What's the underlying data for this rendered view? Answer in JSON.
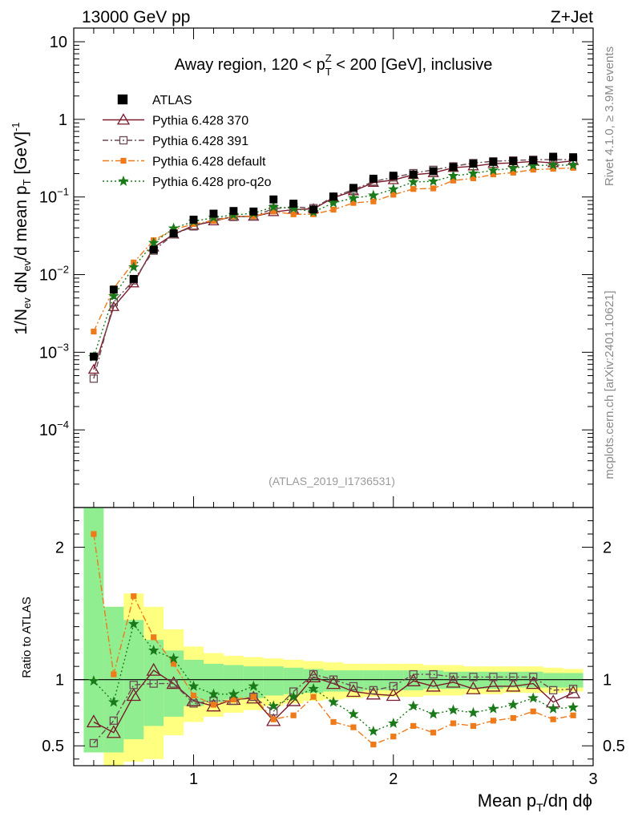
{
  "header": {
    "left": "13000 GeV pp",
    "right": "Z+Jet"
  },
  "side_labels": {
    "rivet": "Rivet 4.1.0, ≥ 3.9M events",
    "mcplots": "mcplots.cern.ch [arXiv:2401.10621]"
  },
  "chart_data": {
    "type": "line",
    "title_parts": [
      "Away region, 120 < p",
      "T",
      "Z",
      " < 200 [GeV], inclusive"
    ],
    "analysis_id": "(ATLAS_2019_I1736531)",
    "ylabel_parts": [
      "1/N",
      "ev",
      " dN",
      "ev",
      "/d mean p",
      "T",
      " [GeV]",
      "-1"
    ],
    "xlabel_parts": [
      "Mean p",
      "T",
      "/dη dϕ"
    ],
    "ratio_ylabel": "Ratio to ATLAS",
    "xlim": [
      0.4,
      3.0
    ],
    "ylim_log": [
      1e-05,
      15
    ],
    "ratio_ylim": [
      0.35,
      2.3
    ],
    "x_ticks": [
      {
        "v": 1,
        "label": "1"
      },
      {
        "v": 2,
        "label": "2"
      },
      {
        "v": 3,
        "label": "3"
      }
    ],
    "y_ticks": [
      {
        "v": 10,
        "base": "10",
        "exp": ""
      },
      {
        "v": 1,
        "base": "1",
        "exp": ""
      },
      {
        "v": 0.1,
        "base": "10",
        "exp": "−1"
      },
      {
        "v": 0.01,
        "base": "10",
        "exp": "−2"
      },
      {
        "v": 0.001,
        "base": "10",
        "exp": "−3"
      },
      {
        "v": 0.0001,
        "base": "10",
        "exp": "−4"
      }
    ],
    "ratio_ticks": [
      {
        "v": 2,
        "label": "2"
      },
      {
        "v": 1,
        "label": "1"
      },
      {
        "v": 0.5,
        "label": "0.5"
      }
    ],
    "x": [
      0.5,
      0.6,
      0.7,
      0.8,
      0.9,
      1.0,
      1.1,
      1.2,
      1.3,
      1.4,
      1.5,
      1.6,
      1.7,
      1.8,
      1.9,
      2.0,
      2.1,
      2.2,
      2.3,
      2.4,
      2.5,
      2.6,
      2.7,
      2.8,
      2.9
    ],
    "bin_edges": [
      0.45,
      0.55,
      0.65,
      0.75,
      0.85,
      0.95,
      1.05,
      1.15,
      1.25,
      1.35,
      1.45,
      1.55,
      1.65,
      1.75,
      1.85,
      1.95,
      2.05,
      2.15,
      2.25,
      2.35,
      2.45,
      2.55,
      2.65,
      2.75,
      2.85,
      2.95
    ],
    "band_outer": [
      [
        0.45,
        2.3
      ],
      [
        0.35,
        1.55
      ],
      [
        0.38,
        1.65
      ],
      [
        0.4,
        1.55
      ],
      [
        0.58,
        1.38
      ],
      [
        0.68,
        1.25
      ],
      [
        0.72,
        1.2
      ],
      [
        0.75,
        1.18
      ],
      [
        0.77,
        1.17
      ],
      [
        0.8,
        1.16
      ],
      [
        0.82,
        1.15
      ],
      [
        0.84,
        1.14
      ],
      [
        0.85,
        1.13
      ],
      [
        0.86,
        1.12
      ],
      [
        0.87,
        1.12
      ],
      [
        0.87,
        1.12
      ],
      [
        0.87,
        1.12
      ],
      [
        0.88,
        1.11
      ],
      [
        0.88,
        1.11
      ],
      [
        0.89,
        1.1
      ],
      [
        0.89,
        1.1
      ],
      [
        0.9,
        1.1
      ],
      [
        0.9,
        1.1
      ],
      [
        0.9,
        1.09
      ],
      [
        0.91,
        1.08
      ]
    ],
    "band_inner": [
      [
        0.45,
        2.3
      ],
      [
        0.45,
        1.55
      ],
      [
        0.55,
        1.45
      ],
      [
        0.65,
        1.3
      ],
      [
        0.72,
        1.22
      ],
      [
        0.8,
        1.15
      ],
      [
        0.83,
        1.12
      ],
      [
        0.85,
        1.11
      ],
      [
        0.86,
        1.1
      ],
      [
        0.88,
        1.1
      ],
      [
        0.89,
        1.09
      ],
      [
        0.9,
        1.08
      ],
      [
        0.91,
        1.07
      ],
      [
        0.91,
        1.07
      ],
      [
        0.92,
        1.07
      ],
      [
        0.92,
        1.07
      ],
      [
        0.92,
        1.07
      ],
      [
        0.93,
        1.07
      ],
      [
        0.93,
        1.06
      ],
      [
        0.93,
        1.06
      ],
      [
        0.93,
        1.06
      ],
      [
        0.94,
        1.06
      ],
      [
        0.94,
        1.06
      ],
      [
        0.94,
        1.05
      ],
      [
        0.94,
        1.05
      ]
    ],
    "data_series": {
      "name": "ATLAS",
      "color": "#000000",
      "values": [
        0.00088,
        0.0064,
        0.0088,
        0.021,
        0.034,
        0.051,
        0.061,
        0.066,
        0.065,
        0.093,
        0.082,
        0.069,
        0.101,
        0.131,
        0.172,
        0.188,
        0.195,
        0.215,
        0.243,
        0.268,
        0.283,
        0.29,
        0.296,
        0.33,
        0.325
      ]
    },
    "series": [
      {
        "name": "Pythia 6.428 370",
        "color": "#7a1a2a",
        "marker": "triangle",
        "dash": "",
        "ratio": [
          0.68,
          0.6,
          0.88,
          1.07,
          0.97,
          0.84,
          0.8,
          0.85,
          0.86,
          0.69,
          0.84,
          1.02,
          0.97,
          0.91,
          0.89,
          0.88,
          0.99,
          0.95,
          0.98,
          0.93,
          0.95,
          0.95,
          0.97,
          0.83,
          0.9
        ]
      },
      {
        "name": "Pythia 6.428 391",
        "color": "#6b4a52",
        "marker": "square-open",
        "dash": "7,3,2,3",
        "ratio": [
          0.52,
          0.69,
          0.96,
          0.97,
          0.97,
          0.82,
          0.84,
          0.84,
          0.87,
          0.76,
          0.91,
          1.04,
          1.0,
          0.95,
          0.92,
          0.95,
          1.04,
          1.04,
          1.02,
          1.02,
          1.02,
          1.02,
          1.02,
          0.92,
          0.93
        ]
      },
      {
        "name": "Pythia 6.428 default",
        "color": "#ee7a1a",
        "marker": "square-filled",
        "dash": "8,3,2,3",
        "ratio": [
          2.1,
          1.04,
          1.63,
          1.32,
          1.12,
          0.88,
          0.81,
          0.85,
          0.87,
          0.7,
          0.73,
          0.87,
          0.68,
          0.64,
          0.51,
          0.57,
          0.65,
          0.6,
          0.67,
          0.65,
          0.69,
          0.71,
          0.76,
          0.7,
          0.73
        ]
      },
      {
        "name": "Pythia 6.428 pro-q2o",
        "color": "#1a7a1a",
        "marker": "star",
        "dash": "2,3",
        "ratio": [
          0.99,
          0.83,
          1.42,
          1.22,
          1.16,
          0.95,
          0.89,
          0.89,
          0.95,
          0.8,
          0.87,
          0.93,
          0.83,
          0.74,
          0.61,
          0.67,
          0.8,
          0.74,
          0.77,
          0.75,
          0.78,
          0.81,
          0.86,
          0.78,
          0.79
        ]
      }
    ]
  }
}
